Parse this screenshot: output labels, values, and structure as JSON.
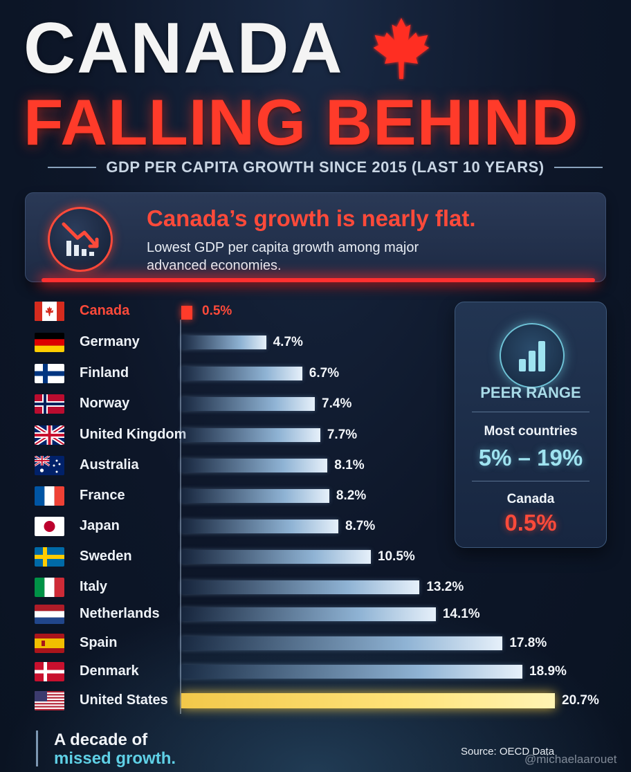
{
  "header": {
    "title_line1": "CANADA",
    "title_line2": "FALLING BEHIND",
    "subtitle": "GDP PER CAPITA GROWTH SINCE 2015 (LAST 10 YEARS)"
  },
  "callout": {
    "heading": "Canada’s growth is nearly flat.",
    "body": "Lowest GDP per capita growth among major advanced economies.",
    "icon": "declining-bar-chart-icon"
  },
  "peer_box": {
    "icon": "bar-chart-icon",
    "title": "PEER RANGE",
    "most_label": "Most countries",
    "most_range": "5% – 19%",
    "canada_label": "Canada",
    "canada_value": "0.5%"
  },
  "footer": {
    "tagline_line1": "A decade of",
    "tagline_line2": "missed growth.",
    "source": "Source: OECD Data",
    "watermark": "@michaelaarouet"
  },
  "colors": {
    "highlight": "#ff3b2a",
    "bar": "#8fb3d4",
    "us_bar": "#f2c84a",
    "accent_teal": "#5fd0e6"
  },
  "chart_data": {
    "type": "bar",
    "orientation": "horizontal",
    "categories": [
      "Canada",
      "Germany",
      "Finland",
      "Norway",
      "United Kingdom",
      "Australia",
      "France",
      "Japan",
      "Sweden",
      "Italy",
      "Netherlands",
      "Spain",
      "Denmark",
      "United States"
    ],
    "values": [
      0.5,
      4.7,
      6.7,
      7.4,
      7.7,
      8.1,
      8.2,
      8.7,
      10.5,
      13.2,
      14.1,
      17.8,
      18.9,
      20.7
    ],
    "value_labels": [
      "0.5%",
      "4.7%",
      "6.7%",
      "7.4%",
      "7.7%",
      "8.1%",
      "8.2%",
      "8.7%",
      "10.5%",
      "13.2%",
      "14.1%",
      "17.8%",
      "18.9%",
      "20.7%"
    ],
    "flags": [
      "canada-flag-icon",
      "germany-flag-icon",
      "finland-flag-icon",
      "norway-flag-icon",
      "uk-flag-icon",
      "australia-flag-icon",
      "france-flag-icon",
      "japan-flag-icon",
      "sweden-flag-icon",
      "italy-flag-icon",
      "netherlands-flag-icon",
      "spain-flag-icon",
      "denmark-flag-icon",
      "usa-flag-icon"
    ],
    "highlighted": [
      "Canada",
      "United States"
    ],
    "xlim": [
      0,
      20.7
    ],
    "grid": false,
    "legend": "none"
  }
}
